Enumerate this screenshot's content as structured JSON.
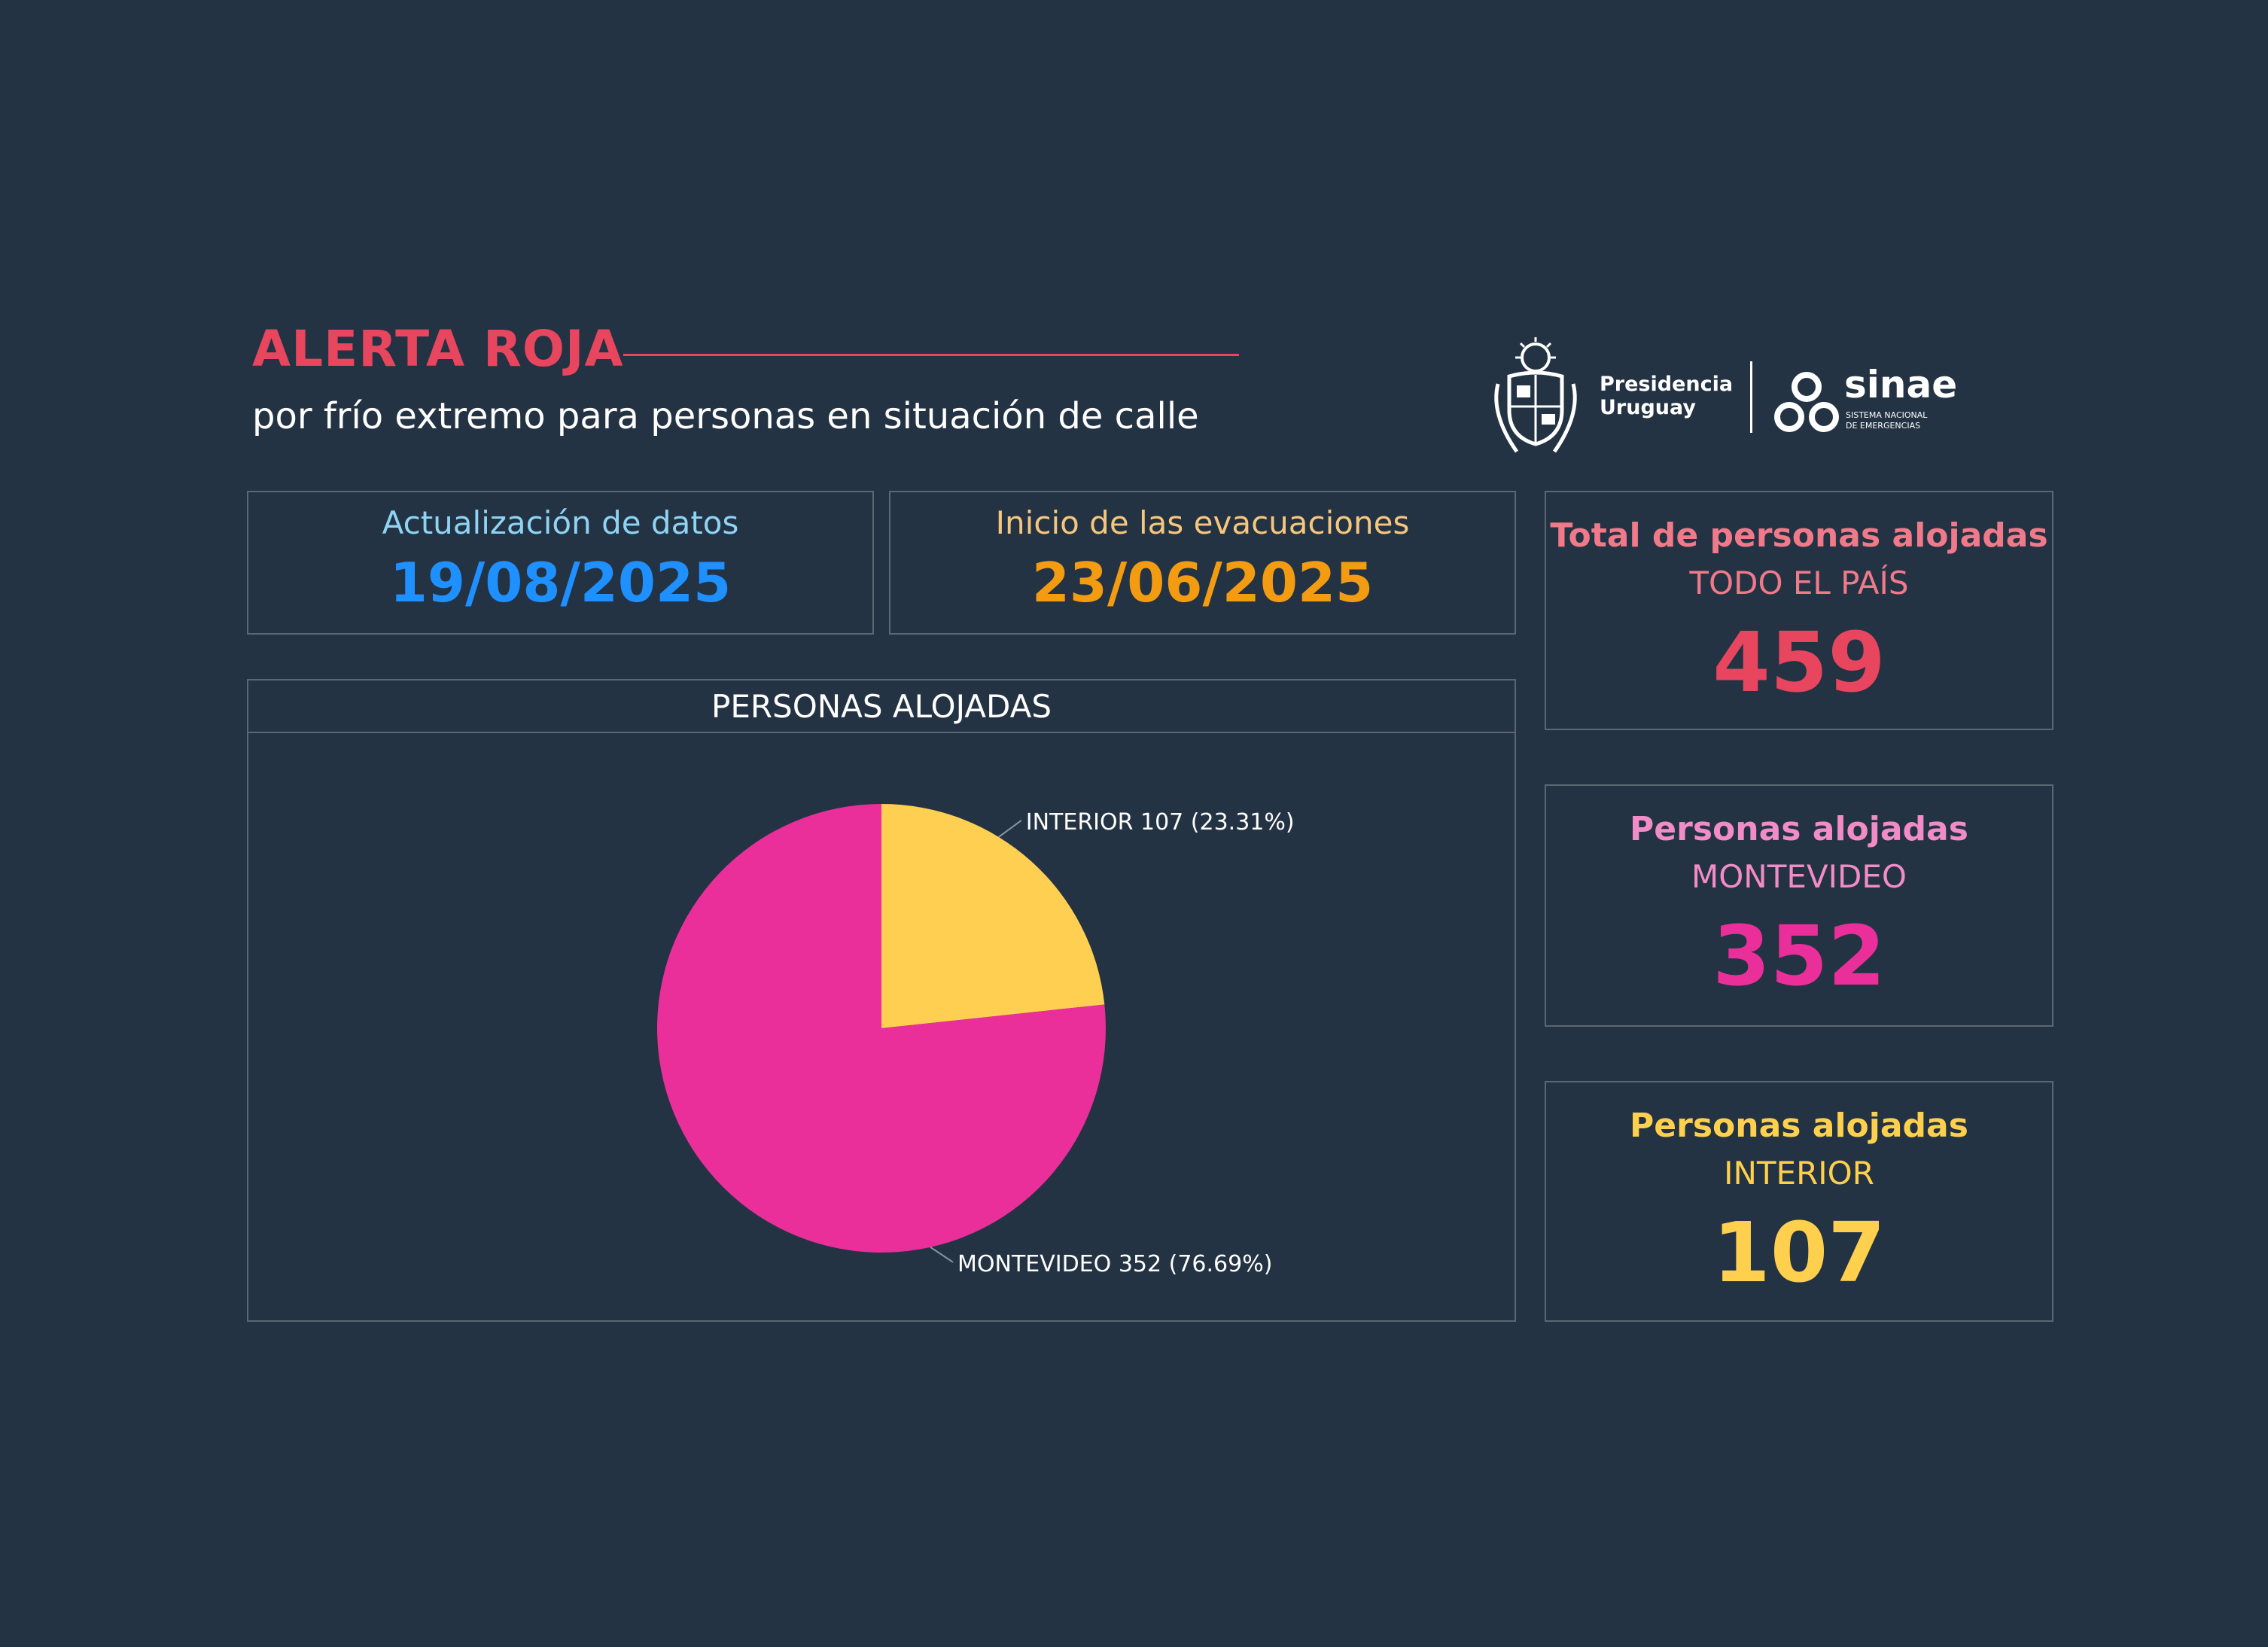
{
  "header": {
    "title": "ALERTA ROJA",
    "subtitle": "por frío extremo para personas en situación de calle"
  },
  "logos": {
    "presidencia_line1": "Presidencia",
    "presidencia_line2": "Uruguay",
    "sinae_name": "sinae",
    "sinae_line1": "SISTEMA NACIONAL",
    "sinae_line2": "DE EMERGENCIAS"
  },
  "dates": {
    "update_label": "Actualización de datos",
    "update_value": "19/08/2025",
    "start_label": "Inicio de las evacuaciones",
    "start_value": "23/06/2025"
  },
  "stats": {
    "total": {
      "label": "Total de personas alojadas",
      "sub": "TODO EL PAÍS",
      "value": "459"
    },
    "montevideo": {
      "label": "Personas alojadas",
      "sub": "MONTEVIDEO",
      "value": "352"
    },
    "interior": {
      "label": "Personas alojadas",
      "sub": "INTERIOR",
      "value": "107"
    }
  },
  "colors": {
    "background": "#233343",
    "title": "#e8455e",
    "update_label": "#8fd3f4",
    "update_value": "#1e90ff",
    "start_label": "#f5c77e",
    "start_value": "#f39c12",
    "total_label": "#f07a8a",
    "total_value": "#e8455e",
    "mvd_label": "#f28cc8",
    "mvd_value": "#ea2f9b",
    "int_label": "#ffd04d",
    "int_value": "#ffd04d"
  },
  "chart_data": {
    "type": "pie",
    "title": "PERSONAS ALOJADAS",
    "slices": [
      {
        "name": "INTERIOR",
        "value": 107,
        "percent": "23.31%",
        "label": "INTERIOR 107 (23.31%)",
        "color": "#ffcf52"
      },
      {
        "name": "MONTEVIDEO",
        "value": 352,
        "percent": "76.69%",
        "label": "MONTEVIDEO 352 (76.69%)",
        "color": "#ea2f9b"
      }
    ]
  }
}
